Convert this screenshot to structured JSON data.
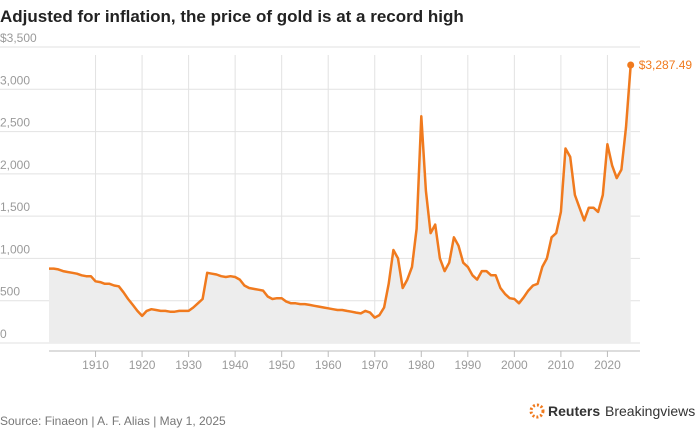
{
  "chart_data": {
    "type": "line",
    "title": "Adjusted for inflation, the price of gold is at a record high",
    "x": [
      1900,
      1901,
      1902,
      1903,
      1904,
      1905,
      1906,
      1907,
      1908,
      1909,
      1910,
      1911,
      1912,
      1913,
      1914,
      1915,
      1916,
      1917,
      1918,
      1919,
      1920,
      1921,
      1922,
      1923,
      1924,
      1925,
      1926,
      1927,
      1928,
      1929,
      1930,
      1931,
      1932,
      1933,
      1934,
      1935,
      1936,
      1937,
      1938,
      1939,
      1940,
      1941,
      1942,
      1943,
      1944,
      1945,
      1946,
      1947,
      1948,
      1949,
      1950,
      1951,
      1952,
      1953,
      1954,
      1955,
      1956,
      1957,
      1958,
      1959,
      1960,
      1961,
      1962,
      1963,
      1964,
      1965,
      1966,
      1967,
      1968,
      1969,
      1970,
      1971,
      1972,
      1973,
      1974,
      1975,
      1976,
      1977,
      1978,
      1979,
      1980,
      1981,
      1982,
      1983,
      1984,
      1985,
      1986,
      1987,
      1988,
      1989,
      1990,
      1991,
      1992,
      1993,
      1994,
      1995,
      1996,
      1997,
      1998,
      1999,
      2000,
      2001,
      2002,
      2003,
      2004,
      2005,
      2006,
      2007,
      2008,
      2009,
      2010,
      2011,
      2012,
      2013,
      2014,
      2015,
      2016,
      2017,
      2018,
      2019,
      2020,
      2021,
      2022,
      2023,
      2024,
      2025
    ],
    "values": [
      880,
      880,
      870,
      850,
      840,
      830,
      820,
      800,
      790,
      790,
      730,
      720,
      700,
      700,
      680,
      670,
      600,
      520,
      450,
      380,
      320,
      380,
      400,
      390,
      380,
      380,
      370,
      370,
      380,
      380,
      380,
      420,
      470,
      520,
      830,
      820,
      810,
      790,
      780,
      790,
      780,
      750,
      680,
      650,
      640,
      630,
      620,
      550,
      520,
      530,
      530,
      490,
      470,
      470,
      460,
      460,
      450,
      440,
      430,
      420,
      410,
      400,
      390,
      390,
      380,
      370,
      360,
      350,
      380,
      360,
      300,
      330,
      420,
      700,
      1100,
      1000,
      650,
      750,
      900,
      1350,
      2680,
      1800,
      1300,
      1400,
      1000,
      850,
      950,
      1250,
      1150,
      950,
      900,
      800,
      750,
      850,
      850,
      800,
      800,
      650,
      580,
      530,
      520,
      470,
      540,
      620,
      680,
      700,
      900,
      1000,
      1250,
      1300,
      1550,
      2300,
      2200,
      1750,
      1600,
      1450,
      1600,
      1600,
      1550,
      1750,
      2350,
      2100,
      1950,
      2050,
      2550,
      3287.49
    ],
    "value_labels": [
      null,
      null,
      null,
      null,
      null,
      null,
      null,
      null,
      null,
      null,
      null,
      null,
      null,
      null,
      null,
      null,
      null,
      null,
      null,
      null,
      null,
      null,
      null,
      null,
      null,
      null,
      null,
      null,
      null,
      null,
      null,
      null,
      null,
      null,
      null,
      null,
      null,
      null,
      null,
      null,
      null,
      null,
      null,
      null,
      null,
      null,
      null,
      null,
      null,
      null,
      null,
      null,
      null,
      null,
      null,
      null,
      null,
      null,
      null,
      null,
      null,
      null,
      null,
      null,
      null,
      null,
      null,
      null,
      null,
      null,
      null,
      null,
      null,
      null,
      null,
      null,
      null,
      null,
      null,
      null,
      null,
      null,
      null,
      null,
      null,
      null,
      null,
      null,
      null,
      null,
      null,
      null,
      null,
      null,
      null,
      null,
      null,
      null,
      null,
      null,
      null,
      null,
      null,
      null,
      null,
      null,
      null,
      null,
      null,
      null,
      null,
      null,
      null,
      null,
      null,
      null,
      null,
      null,
      null,
      null,
      null,
      null,
      null,
      null,
      null,
      "$3,287.49"
    ],
    "color": "#f07a1e",
    "area_color": "#ededed",
    "xlim": [
      1900,
      2027
    ],
    "xticks": [
      1910,
      1920,
      1930,
      1940,
      1950,
      1960,
      1970,
      1980,
      1990,
      2000,
      2010,
      2020
    ],
    "ylim": [
      0,
      3500
    ],
    "yticks": [
      0,
      500,
      {
        "value": 1000,
        "label": "1,000"
      },
      {
        "value": 1500,
        "label": "1,500"
      },
      {
        "value": 2000,
        "label": "2,000"
      },
      {
        "value": 2500,
        "label": "2,500"
      },
      {
        "value": 3000,
        "label": "3,000"
      },
      {
        "value": 3500,
        "label": "$3,500"
      }
    ],
    "grid": true,
    "source": "Source: Finaeon | A. F. Alias | May 1, 2025",
    "logo": {
      "brand": "Reuters",
      "product": "Breakingviews"
    }
  }
}
